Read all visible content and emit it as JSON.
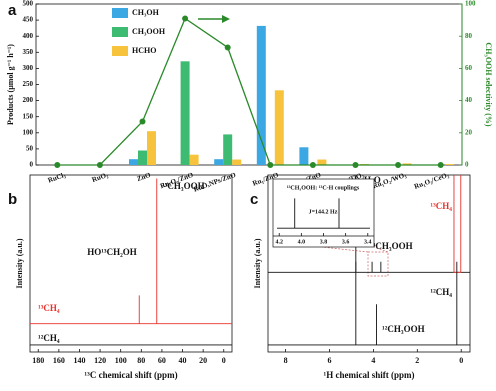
{
  "chart_data": [
    {
      "type": "bar",
      "label": "a",
      "categories": [
        "RuCl₃",
        "RuO₂",
        "ZnO",
        "Ru₁O₂/ZnO",
        "RuOₓNPs/ZnO",
        "Ru₁/ZnO",
        "RuNPs/ZnO",
        "Ru₁O₂/TiO₂",
        "Ru₁O₂/WO₃",
        "Ru₁O₂/CeO₂"
      ],
      "series": [
        {
          "name": "CH₃OH",
          "color": "#3ba7e3",
          "values": [
            0,
            0,
            18,
            0,
            18,
            432,
            55,
            0,
            0,
            0
          ]
        },
        {
          "name": "CH₃OOH",
          "color": "#3dbb72",
          "values": [
            0,
            0,
            45,
            322,
            95,
            0,
            0,
            0,
            0,
            0
          ]
        },
        {
          "name": "HCHO",
          "color": "#f7c33c",
          "values": [
            0,
            0,
            105,
            32,
            17,
            232,
            17,
            3,
            5,
            3
          ]
        },
        {
          "type": "line",
          "axis": "y2",
          "color": "#2a8a2a",
          "values": [
            0,
            0,
            27,
            91,
            73,
            0,
            0,
            0,
            0,
            0
          ]
        }
      ],
      "ylabel": "Products (μmol g⁻¹ h⁻¹)",
      "y2label": "CH₃OOH selectivity (%)",
      "ylim": [
        0,
        500
      ],
      "yticks": [
        0,
        50,
        100,
        150,
        200,
        250,
        300,
        350,
        400,
        450,
        500
      ],
      "y2lim": [
        0,
        100
      ],
      "y2ticks": [
        0,
        20,
        40,
        60,
        80,
        100
      ],
      "legend": "upper left"
    },
    {
      "type": "line",
      "label": "b",
      "xlabel": "¹³C chemical shift (ppm)",
      "ylabel": "Intensity (a.u.)",
      "xlim": [
        188,
        -8
      ],
      "xticks": [
        180,
        160,
        140,
        120,
        100,
        80,
        60,
        40,
        20,
        0
      ],
      "ylim": [
        0,
        100
      ],
      "series": [
        {
          "color": "#e8302a",
          "x": [
            188,
            82,
            82,
            82,
            65,
            65,
            65,
            -8
          ],
          "values": [
            16,
            16,
            32,
            16,
            16,
            98,
            16,
            16
          ]
        },
        {
          "color": "#111111",
          "x": [
            188,
            -8
          ],
          "values": [
            4,
            4
          ]
        }
      ],
      "annotations": [
        "¹³CH₃OOH",
        "HO¹³CH₂OH",
        "¹³CH₄",
        "¹²CH₄"
      ]
    },
    {
      "type": "line",
      "label": "c",
      "xlabel": "¹H chemical shift (ppm)",
      "ylabel": "Intensity (a.u.)",
      "xlim": [
        8.8,
        -0.4
      ],
      "xticks": [
        8,
        6,
        4,
        2,
        0
      ],
      "ylim": [
        0,
        100
      ],
      "series": [
        {
          "color": "#111111",
          "x": [
            8.8,
            4.8,
            4.8,
            4.8,
            4.06,
            4.06,
            4.06,
            3.66,
            3.66,
            3.66,
            -0.4
          ],
          "values": [
            45,
            45,
            100,
            45,
            45,
            51,
            45,
            45,
            51,
            45,
            45
          ]
        },
        {
          "color": "#e8302a",
          "x": [
            0.33,
            0.33,
            0.33,
            0.02,
            0.02,
            0.02
          ],
          "values": [
            45,
            100,
            45,
            45,
            100,
            45
          ]
        },
        {
          "color": "#111111",
          "x": [
            8.8,
            4.8,
            4.8,
            4.8,
            3.86,
            3.86,
            3.86,
            0.2,
            0.2,
            0.2,
            -0.4
          ],
          "values": [
            4,
            4,
            51,
            4,
            4,
            27,
            4,
            4,
            51,
            4,
            4
          ]
        }
      ],
      "annotations": [
        "H₂O",
        "¹³CH₃OOH",
        "¹³CH₄",
        "¹²CH₃OOH",
        "¹²CH₄"
      ]
    },
    {
      "type": "line",
      "xlim": [
        4.22,
        3.38
      ],
      "xticks": [
        4.2,
        {
          "value": 4,
          "label": "4.0"
        },
        3.8,
        3.6,
        3.4
      ],
      "ylim": [
        0,
        100
      ],
      "series": [
        {
          "color": "#111111",
          "x": [
            4.22,
            4.06,
            4.06,
            4.06,
            3.66,
            3.66,
            3.66,
            3.38
          ],
          "values": [
            8,
            8,
            70,
            8,
            8,
            70,
            8,
            8
          ]
        }
      ],
      "annotations": [
        "¹³CH₃OOH: ¹³C-H couplings",
        "J=144.2 Hz"
      ]
    }
  ]
}
